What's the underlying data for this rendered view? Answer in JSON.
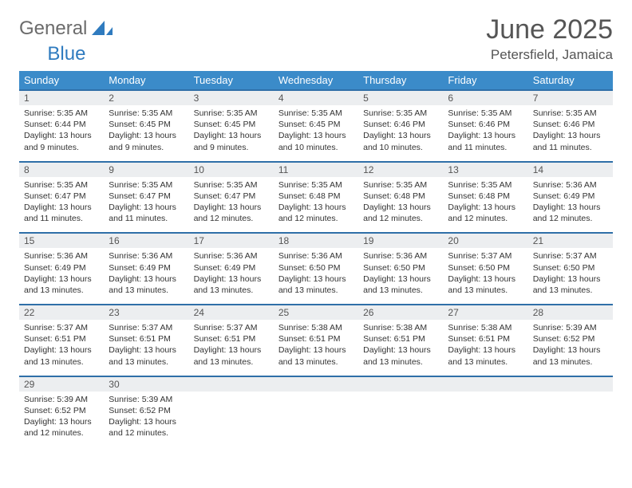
{
  "logo": {
    "part1": "General",
    "part2": "Blue"
  },
  "title": "June 2025",
  "location": "Petersfield, Jamaica",
  "colors": {
    "header_bg": "#3b8bc9",
    "header_text": "#ffffff",
    "numrow_bg": "#eceef0",
    "numrow_border": "#2f6fa8",
    "body_text": "#333333",
    "title_text": "#555555",
    "logo_gray": "#6b6b6b",
    "logo_blue": "#2f7bbf"
  },
  "typography": {
    "title_fontsize": 34,
    "location_fontsize": 17,
    "dayhead_fontsize": 13,
    "daynum_fontsize": 12,
    "cell_fontsize": 10.5
  },
  "day_names": [
    "Sunday",
    "Monday",
    "Tuesday",
    "Wednesday",
    "Thursday",
    "Friday",
    "Saturday"
  ],
  "weeks": [
    {
      "nums": [
        "1",
        "2",
        "3",
        "4",
        "5",
        "6",
        "7"
      ],
      "cells": [
        {
          "sunrise": "5:35 AM",
          "sunset": "6:44 PM",
          "daylight": "13 hours and 9 minutes."
        },
        {
          "sunrise": "5:35 AM",
          "sunset": "6:45 PM",
          "daylight": "13 hours and 9 minutes."
        },
        {
          "sunrise": "5:35 AM",
          "sunset": "6:45 PM",
          "daylight": "13 hours and 9 minutes."
        },
        {
          "sunrise": "5:35 AM",
          "sunset": "6:45 PM",
          "daylight": "13 hours and 10 minutes."
        },
        {
          "sunrise": "5:35 AM",
          "sunset": "6:46 PM",
          "daylight": "13 hours and 10 minutes."
        },
        {
          "sunrise": "5:35 AM",
          "sunset": "6:46 PM",
          "daylight": "13 hours and 11 minutes."
        },
        {
          "sunrise": "5:35 AM",
          "sunset": "6:46 PM",
          "daylight": "13 hours and 11 minutes."
        }
      ]
    },
    {
      "nums": [
        "8",
        "9",
        "10",
        "11",
        "12",
        "13",
        "14"
      ],
      "cells": [
        {
          "sunrise": "5:35 AM",
          "sunset": "6:47 PM",
          "daylight": "13 hours and 11 minutes."
        },
        {
          "sunrise": "5:35 AM",
          "sunset": "6:47 PM",
          "daylight": "13 hours and 11 minutes."
        },
        {
          "sunrise": "5:35 AM",
          "sunset": "6:47 PM",
          "daylight": "13 hours and 12 minutes."
        },
        {
          "sunrise": "5:35 AM",
          "sunset": "6:48 PM",
          "daylight": "13 hours and 12 minutes."
        },
        {
          "sunrise": "5:35 AM",
          "sunset": "6:48 PM",
          "daylight": "13 hours and 12 minutes."
        },
        {
          "sunrise": "5:35 AM",
          "sunset": "6:48 PM",
          "daylight": "13 hours and 12 minutes."
        },
        {
          "sunrise": "5:36 AM",
          "sunset": "6:49 PM",
          "daylight": "13 hours and 12 minutes."
        }
      ]
    },
    {
      "nums": [
        "15",
        "16",
        "17",
        "18",
        "19",
        "20",
        "21"
      ],
      "cells": [
        {
          "sunrise": "5:36 AM",
          "sunset": "6:49 PM",
          "daylight": "13 hours and 13 minutes."
        },
        {
          "sunrise": "5:36 AM",
          "sunset": "6:49 PM",
          "daylight": "13 hours and 13 minutes."
        },
        {
          "sunrise": "5:36 AM",
          "sunset": "6:49 PM",
          "daylight": "13 hours and 13 minutes."
        },
        {
          "sunrise": "5:36 AM",
          "sunset": "6:50 PM",
          "daylight": "13 hours and 13 minutes."
        },
        {
          "sunrise": "5:36 AM",
          "sunset": "6:50 PM",
          "daylight": "13 hours and 13 minutes."
        },
        {
          "sunrise": "5:37 AM",
          "sunset": "6:50 PM",
          "daylight": "13 hours and 13 minutes."
        },
        {
          "sunrise": "5:37 AM",
          "sunset": "6:50 PM",
          "daylight": "13 hours and 13 minutes."
        }
      ]
    },
    {
      "nums": [
        "22",
        "23",
        "24",
        "25",
        "26",
        "27",
        "28"
      ],
      "cells": [
        {
          "sunrise": "5:37 AM",
          "sunset": "6:51 PM",
          "daylight": "13 hours and 13 minutes."
        },
        {
          "sunrise": "5:37 AM",
          "sunset": "6:51 PM",
          "daylight": "13 hours and 13 minutes."
        },
        {
          "sunrise": "5:37 AM",
          "sunset": "6:51 PM",
          "daylight": "13 hours and 13 minutes."
        },
        {
          "sunrise": "5:38 AM",
          "sunset": "6:51 PM",
          "daylight": "13 hours and 13 minutes."
        },
        {
          "sunrise": "5:38 AM",
          "sunset": "6:51 PM",
          "daylight": "13 hours and 13 minutes."
        },
        {
          "sunrise": "5:38 AM",
          "sunset": "6:51 PM",
          "daylight": "13 hours and 13 minutes."
        },
        {
          "sunrise": "5:39 AM",
          "sunset": "6:52 PM",
          "daylight": "13 hours and 13 minutes."
        }
      ]
    },
    {
      "nums": [
        "29",
        "30",
        "",
        "",
        "",
        "",
        ""
      ],
      "cells": [
        {
          "sunrise": "5:39 AM",
          "sunset": "6:52 PM",
          "daylight": "13 hours and 12 minutes."
        },
        {
          "sunrise": "5:39 AM",
          "sunset": "6:52 PM",
          "daylight": "13 hours and 12 minutes."
        },
        null,
        null,
        null,
        null,
        null
      ]
    }
  ],
  "labels": {
    "sunrise": "Sunrise:",
    "sunset": "Sunset:",
    "daylight": "Daylight:"
  }
}
